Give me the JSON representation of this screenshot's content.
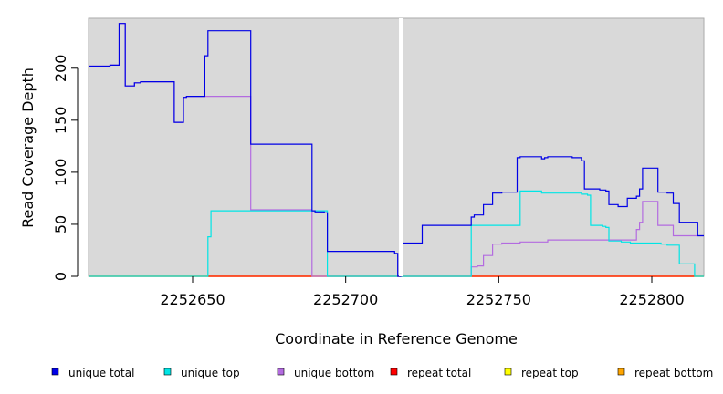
{
  "chart_data": {
    "type": "line",
    "step": true,
    "xlabel": "Coordinate in Reference Genome",
    "ylabel": "Read Coverage Depth",
    "xlim": [
      2252616,
      2252817
    ],
    "ylim": [
      0,
      248
    ],
    "x_ticks": [
      2252650,
      2252700,
      2252750,
      2252800
    ],
    "y_ticks": [
      0,
      50,
      100,
      150,
      200
    ],
    "x_tick_labels": [
      "2252650",
      "2252700",
      "2252750",
      "2252800"
    ],
    "y_tick_labels": [
      "0",
      "50",
      "100",
      "150",
      "200"
    ],
    "background": "#d9d9d9",
    "grid": false,
    "gap_marker_x": 2252718,
    "legend_position": "bottom",
    "series": [
      {
        "name": "unique total",
        "color": "#0000e6",
        "points": [
          [
            2252616,
            202
          ],
          [
            2252623,
            203
          ],
          [
            2252626,
            243
          ],
          [
            2252628,
            183
          ],
          [
            2252631,
            186
          ],
          [
            2252633,
            187
          ],
          [
            2252644,
            148
          ],
          [
            2252647,
            172
          ],
          [
            2252648,
            173
          ],
          [
            2252654,
            212
          ],
          [
            2252655,
            236
          ],
          [
            2252669,
            127
          ],
          [
            2252689,
            63
          ],
          [
            2252690,
            62
          ],
          [
            2252693,
            61
          ],
          [
            2252694,
            24
          ],
          [
            2252716,
            22
          ],
          [
            2252717,
            0
          ],
          [
            2252718,
            32
          ],
          [
            2252725,
            49
          ],
          [
            2252741,
            57
          ],
          [
            2252742,
            59
          ],
          [
            2252745,
            69
          ],
          [
            2252748,
            80
          ],
          [
            2252751,
            81
          ],
          [
            2252756,
            114
          ],
          [
            2252757,
            115
          ],
          [
            2252764,
            113
          ],
          [
            2252765,
            114
          ],
          [
            2252766,
            115
          ],
          [
            2252774,
            114
          ],
          [
            2252777,
            111
          ],
          [
            2252778,
            84
          ],
          [
            2252783,
            83
          ],
          [
            2252785,
            82
          ],
          [
            2252786,
            69
          ],
          [
            2252789,
            67
          ],
          [
            2252792,
            75
          ],
          [
            2252795,
            77
          ],
          [
            2252796,
            84
          ],
          [
            2252797,
            104
          ],
          [
            2252802,
            81
          ],
          [
            2252805,
            80
          ],
          [
            2252807,
            70
          ],
          [
            2252809,
            52
          ],
          [
            2252815,
            39
          ],
          [
            2252817,
            39
          ]
        ]
      },
      {
        "name": "unique top",
        "color": "#00e5e5",
        "points": [
          [
            2252616,
            0
          ],
          [
            2252654,
            0
          ],
          [
            2252655,
            38
          ],
          [
            2252656,
            63
          ],
          [
            2252693,
            63
          ],
          [
            2252694,
            0
          ],
          [
            2252741,
            0
          ],
          [
            2252741,
            49
          ],
          [
            2252756,
            49
          ],
          [
            2252757,
            82
          ],
          [
            2252764,
            80
          ],
          [
            2252777,
            79
          ],
          [
            2252779,
            78
          ],
          [
            2252780,
            49
          ],
          [
            2252784,
            48
          ],
          [
            2252785,
            47
          ],
          [
            2252786,
            34
          ],
          [
            2252790,
            33
          ],
          [
            2252793,
            32
          ],
          [
            2252803,
            31
          ],
          [
            2252805,
            30
          ],
          [
            2252809,
            12
          ],
          [
            2252814,
            0
          ],
          [
            2252817,
            0
          ]
        ]
      },
      {
        "name": "unique bottom",
        "color": "#b36be0",
        "points": [
          [
            2252616,
            202
          ],
          [
            2252623,
            203
          ],
          [
            2252626,
            243
          ],
          [
            2252628,
            183
          ],
          [
            2252631,
            186
          ],
          [
            2252633,
            187
          ],
          [
            2252644,
            148
          ],
          [
            2252647,
            172
          ],
          [
            2252648,
            173
          ],
          [
            2252669,
            64
          ],
          [
            2252689,
            0
          ],
          [
            2252741,
            0
          ],
          [
            2252741,
            9
          ],
          [
            2252743,
            10
          ],
          [
            2252745,
            20
          ],
          [
            2252748,
            31
          ],
          [
            2252751,
            32
          ],
          [
            2252757,
            33
          ],
          [
            2252766,
            35
          ],
          [
            2252785,
            35
          ],
          [
            2252795,
            45
          ],
          [
            2252796,
            52
          ],
          [
            2252797,
            72
          ],
          [
            2252802,
            49
          ],
          [
            2252807,
            39
          ],
          [
            2252817,
            39
          ]
        ]
      },
      {
        "name": "repeat total",
        "color": "#ff0000",
        "points": [
          [
            2252616,
            0
          ],
          [
            2252817,
            0
          ]
        ]
      },
      {
        "name": "repeat top",
        "color": "#ffff00",
        "points": [
          [
            2252616,
            0
          ],
          [
            2252817,
            0
          ]
        ]
      },
      {
        "name": "repeat bottom",
        "color": "#ffa500",
        "points": [
          [
            2252616,
            0
          ],
          [
            2252817,
            0
          ]
        ]
      }
    ]
  }
}
